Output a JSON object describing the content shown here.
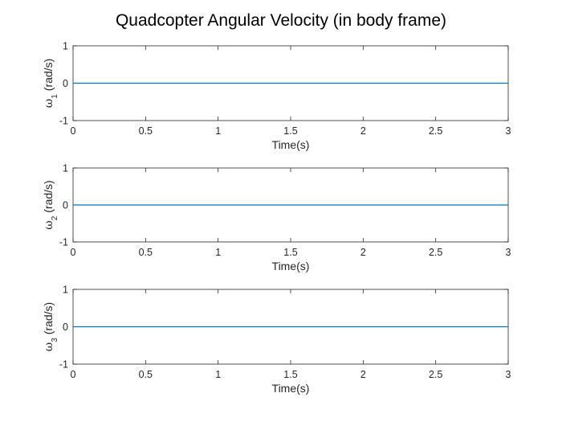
{
  "figure": {
    "title": "Quadcopter Angular Velocity (in body frame)"
  },
  "chart_data": [
    {
      "type": "line",
      "title": "",
      "xlabel": "Time(s)",
      "ylabel": {
        "symbol": "ω",
        "subscript": "1",
        "unit": "(rad/s)"
      },
      "xlim": [
        0,
        3
      ],
      "ylim": [
        -1,
        1
      ],
      "xticks": [
        "0",
        "0.5",
        "1",
        "1.5",
        "2",
        "2.5",
        "3"
      ],
      "xtick_values": [
        0,
        0.5,
        1,
        1.5,
        2,
        2.5,
        3
      ],
      "yticks": [
        "-1",
        "0",
        "1"
      ],
      "ytick_values": [
        -1,
        0,
        1
      ],
      "grid": false,
      "series": [
        {
          "x": [
            0,
            3
          ],
          "y": [
            0,
            0
          ],
          "color": "#0072BD"
        }
      ]
    },
    {
      "type": "line",
      "title": "",
      "xlabel": "Time(s)",
      "ylabel": {
        "symbol": "ω",
        "subscript": "2",
        "unit": "(rad/s)"
      },
      "xlim": [
        0,
        3
      ],
      "ylim": [
        -1,
        1
      ],
      "xticks": [
        "0",
        "0.5",
        "1",
        "1.5",
        "2",
        "2.5",
        "3"
      ],
      "xtick_values": [
        0,
        0.5,
        1,
        1.5,
        2,
        2.5,
        3
      ],
      "yticks": [
        "-1",
        "0",
        "1"
      ],
      "ytick_values": [
        -1,
        0,
        1
      ],
      "grid": false,
      "series": [
        {
          "x": [
            0,
            3
          ],
          "y": [
            0,
            0
          ],
          "color": "#0072BD"
        }
      ]
    },
    {
      "type": "line",
      "title": "",
      "xlabel": "Time(s)",
      "ylabel": {
        "symbol": "ω",
        "subscript": "3",
        "unit": "(rad/s)"
      },
      "xlim": [
        0,
        3
      ],
      "ylim": [
        -1,
        1
      ],
      "xticks": [
        "0",
        "0.5",
        "1",
        "1.5",
        "2",
        "2.5",
        "3"
      ],
      "xtick_values": [
        0,
        0.5,
        1,
        1.5,
        2,
        2.5,
        3
      ],
      "yticks": [
        "-1",
        "0",
        "1"
      ],
      "ytick_values": [
        -1,
        0,
        1
      ],
      "grid": false,
      "series": [
        {
          "x": [
            0,
            3
          ],
          "y": [
            0,
            0
          ],
          "color": "#0072BD"
        }
      ]
    }
  ],
  "colors": {
    "axes": "#262626",
    "box": "#262626",
    "line": "#0072BD",
    "background": "#ffffff"
  }
}
